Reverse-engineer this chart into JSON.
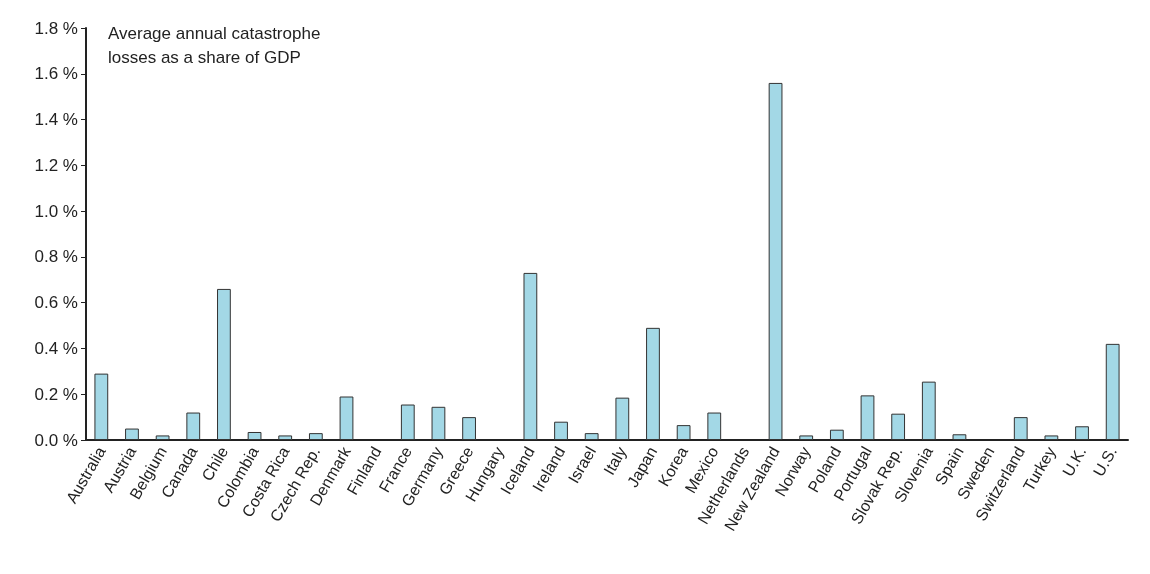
{
  "chart_data": {
    "type": "bar",
    "title": "Average annual catastrophe losses as a share of GDP",
    "categories": [
      "Australia",
      "Austria",
      "Belgium",
      "Canada",
      "Chile",
      "Colombia",
      "Costa Rica",
      "Czech Rep.",
      "Denmark",
      "Finland",
      "France",
      "Germany",
      "Greece",
      "Hungary",
      "Iceland",
      "Ireland",
      "Israel",
      "Italy",
      "Japan",
      "Korea",
      "Mexico",
      "Netherlands",
      "New Zealand",
      "Norway",
      "Poland",
      "Portugal",
      "Slovak Rep.",
      "Slovenia",
      "Spain",
      "Sweden",
      "Switzerland",
      "Turkey",
      "U.K.",
      "U.S."
    ],
    "values": [
      0.29,
      0.05,
      0.02,
      0.12,
      0.66,
      0.035,
      0.02,
      0.03,
      0.19,
      0,
      0.155,
      0.145,
      0.1,
      0,
      0.73,
      0.08,
      0.03,
      0.185,
      0.49,
      0.065,
      0.12,
      0,
      1.56,
      0.02,
      0.045,
      0.195,
      0.115,
      0.255,
      0.025,
      0,
      0.1,
      0.02,
      0.06,
      0.42
    ],
    "color": "#a3d8e6",
    "ylim": [
      0,
      1.8
    ],
    "yticks": [
      {
        "value": 0,
        "label": "0.0 %"
      },
      {
        "value": 0.2,
        "label": "0.2 %"
      },
      {
        "value": 0.4,
        "label": "0.4 %"
      },
      {
        "value": 0.6,
        "label": "0.6 %"
      },
      {
        "value": 0.8,
        "label": "0.8 %"
      },
      {
        "value": 1.0,
        "label": "1.0 %"
      },
      {
        "value": 1.2,
        "label": "1.2 %"
      },
      {
        "value": 1.4,
        "label": "1.4 %"
      },
      {
        "value": 1.6,
        "label": "1.6 %"
      },
      {
        "value": 1.8,
        "label": "1.8 %"
      }
    ],
    "grid": false
  }
}
